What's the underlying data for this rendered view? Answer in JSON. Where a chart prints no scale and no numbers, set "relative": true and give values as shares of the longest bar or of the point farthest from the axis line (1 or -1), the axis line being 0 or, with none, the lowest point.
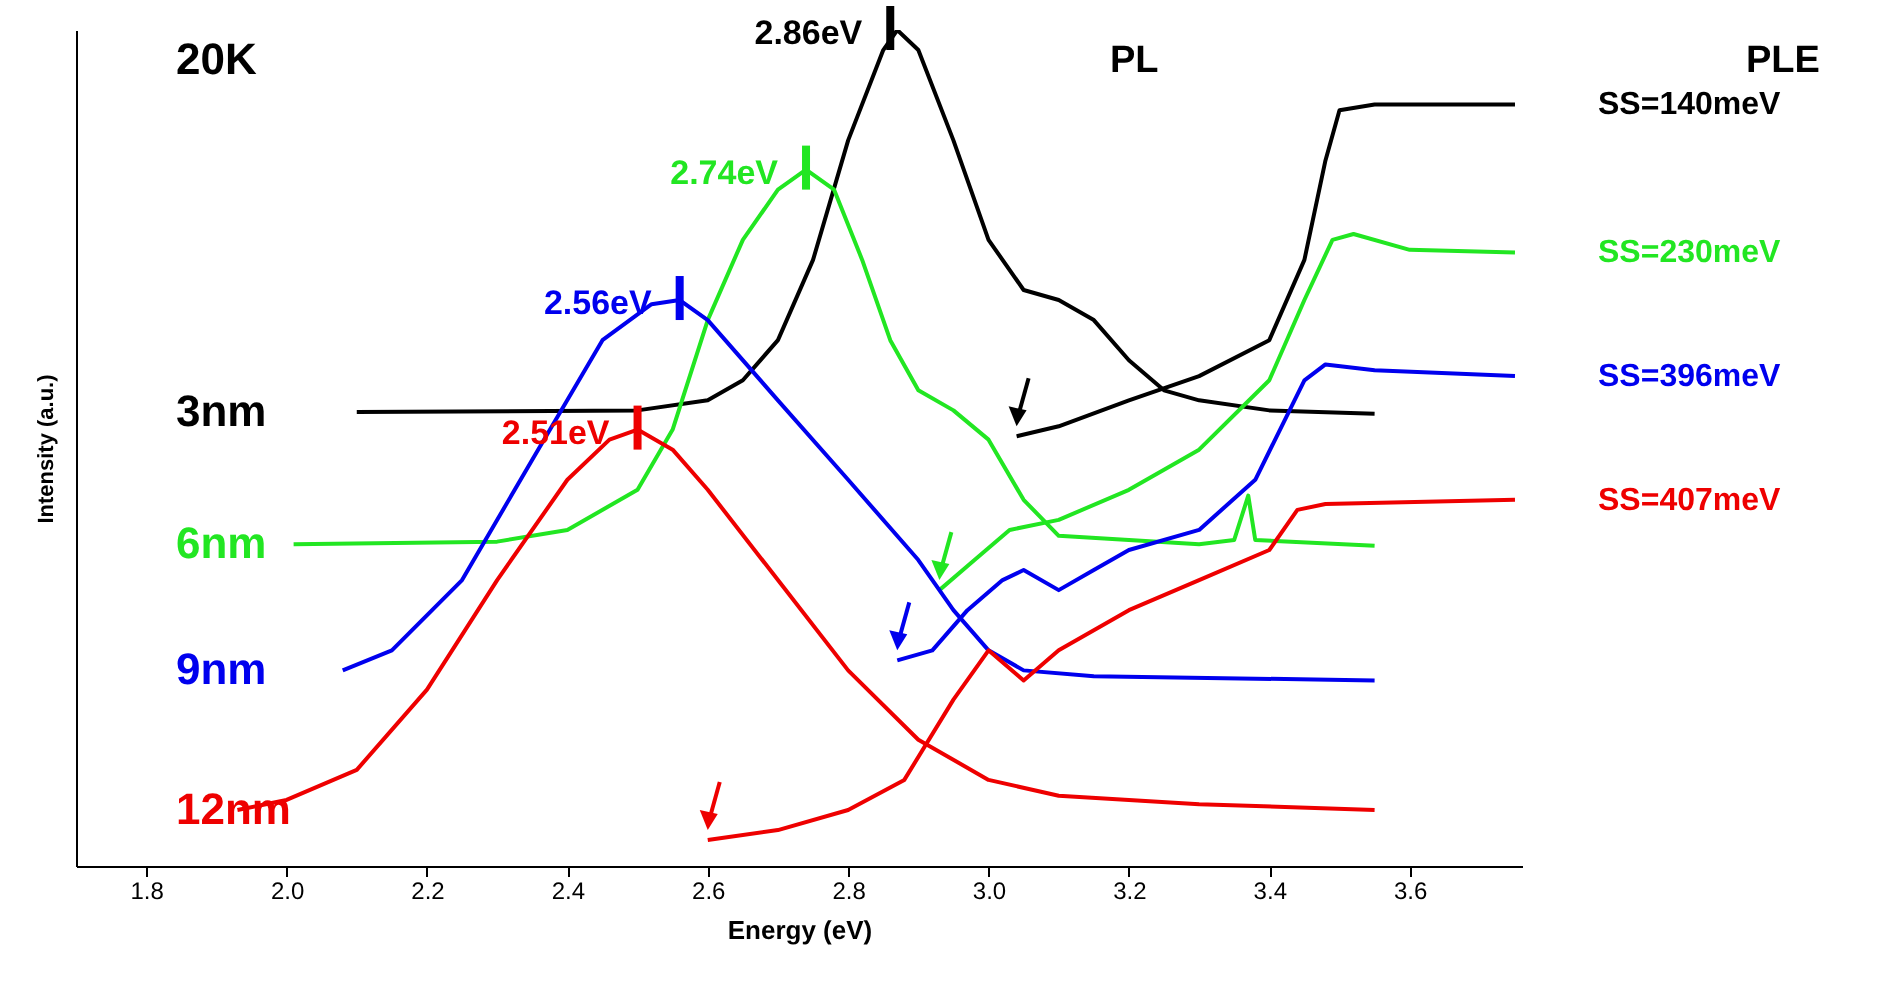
{
  "chart_data": {
    "type": "line",
    "xlabel": "Energy (eV)",
    "ylabel": "Intensity (a.u.)",
    "relative": true,
    "grid": false,
    "xlim": [
      1.7,
      3.76
    ],
    "xticks": [
      1.8,
      {
        "value": 2,
        "label": "2.0"
      },
      2.2,
      2.4,
      2.6,
      2.8,
      {
        "value": 3,
        "label": "3.0"
      },
      3.2,
      3.4,
      3.6
    ],
    "series": [
      {
        "name": "3nm",
        "color": "#000000",
        "x": [
          2.1,
          2.5,
          2.6,
          2.65,
          2.7,
          2.75,
          2.8,
          2.85,
          2.87,
          2.9,
          2.95,
          3.0,
          3.05,
          3.1,
          3.15,
          3.2,
          3.25,
          3.3,
          3.4,
          3.55
        ],
        "values": [
          0.543,
          0.545,
          0.557,
          0.581,
          0.629,
          0.725,
          0.868,
          0.976,
          1.0,
          0.976,
          0.868,
          0.749,
          0.689,
          0.677,
          0.653,
          0.605,
          0.569,
          0.557,
          0.545,
          0.541
        ]
      },
      {
        "name": "SS=140meV",
        "color": "#000000",
        "x": [
          3.04,
          3.1,
          3.2,
          3.3,
          3.4,
          3.45,
          3.48,
          3.5,
          3.55,
          3.75
        ],
        "values": [
          0.514,
          0.526,
          0.557,
          0.586,
          0.629,
          0.725,
          0.844,
          0.904,
          0.911,
          0.911
        ]
      },
      {
        "name": "6nm",
        "color": "#22e622",
        "x": [
          2.01,
          2.3,
          2.4,
          2.5,
          2.55,
          2.6,
          2.65,
          2.7,
          2.74,
          2.78,
          2.82,
          2.86,
          2.9,
          2.95,
          3.0,
          3.05,
          3.1,
          3.2,
          3.3,
          3.35,
          3.37,
          3.38,
          3.55
        ],
        "values": [
          0.385,
          0.388,
          0.402,
          0.45,
          0.522,
          0.653,
          0.749,
          0.809,
          0.833,
          0.809,
          0.725,
          0.629,
          0.569,
          0.545,
          0.51,
          0.438,
          0.395,
          0.39,
          0.385,
          0.39,
          0.443,
          0.39,
          0.383
        ]
      },
      {
        "name": "SS=230meV",
        "color": "#22e622",
        "x": [
          2.93,
          2.98,
          3.03,
          3.1,
          3.2,
          3.3,
          3.4,
          3.45,
          3.49,
          3.52,
          3.6,
          3.75
        ],
        "values": [
          0.33,
          0.366,
          0.402,
          0.414,
          0.45,
          0.498,
          0.581,
          0.677,
          0.749,
          0.756,
          0.737,
          0.734
        ]
      },
      {
        "name": "9nm",
        "color": "#0000ee",
        "x": [
          2.08,
          2.15,
          2.25,
          2.35,
          2.45,
          2.52,
          2.56,
          2.6,
          2.7,
          2.8,
          2.9,
          2.95,
          3.0,
          3.05,
          3.15,
          3.55
        ],
        "values": [
          0.234,
          0.258,
          0.342,
          0.486,
          0.629,
          0.672,
          0.677,
          0.653,
          0.557,
          0.462,
          0.366,
          0.306,
          0.258,
          0.234,
          0.227,
          0.222
        ]
      },
      {
        "name": "SS=396meV",
        "color": "#0000ee",
        "x": [
          2.87,
          2.92,
          2.97,
          3.02,
          3.05,
          3.1,
          3.15,
          3.2,
          3.3,
          3.38,
          3.45,
          3.48,
          3.55,
          3.75
        ],
        "values": [
          0.246,
          0.258,
          0.306,
          0.342,
          0.354,
          0.33,
          0.354,
          0.378,
          0.402,
          0.462,
          0.581,
          0.6,
          0.593,
          0.586
        ]
      },
      {
        "name": "12nm",
        "color": "#ee0000",
        "x": [
          1.93,
          2.0,
          2.1,
          2.2,
          2.3,
          2.4,
          2.46,
          2.5,
          2.55,
          2.6,
          2.7,
          2.8,
          2.9,
          3.0,
          3.1,
          3.3,
          3.55
        ],
        "values": [
          0.067,
          0.079,
          0.115,
          0.211,
          0.342,
          0.462,
          0.51,
          0.522,
          0.498,
          0.45,
          0.342,
          0.234,
          0.151,
          0.103,
          0.084,
          0.074,
          0.067
        ]
      },
      {
        "name": "SS=407meV",
        "color": "#ee0000",
        "x": [
          2.6,
          2.7,
          2.8,
          2.88,
          2.95,
          3.0,
          3.05,
          3.1,
          3.2,
          3.3,
          3.4,
          3.44,
          3.48,
          3.75
        ],
        "values": [
          0.031,
          0.043,
          0.067,
          0.103,
          0.199,
          0.258,
          0.222,
          0.258,
          0.306,
          0.342,
          0.378,
          0.426,
          0.433,
          0.438
        ]
      }
    ],
    "annotations": [
      "20K",
      "PL",
      "PLE",
      {
        "text": "2.86eV",
        "x": 2.86,
        "y": 1.0
      },
      {
        "text": "2.74eV",
        "x": 2.74,
        "y": 0.833
      },
      {
        "text": "2.56eV",
        "x": 2.56,
        "y": 0.677
      },
      {
        "text": "2.51eV",
        "x": 2.5,
        "y": 0.522
      }
    ]
  }
}
